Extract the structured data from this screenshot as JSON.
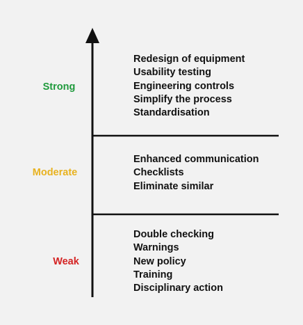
{
  "colors": {
    "background": "#f2f2f2",
    "line": "#111111",
    "strong": "#1f9a3c",
    "moderate": "#e8b21f",
    "weak": "#d42323"
  },
  "levels": [
    {
      "label": "Strong",
      "color": "#1f9a3c",
      "items": [
        "Redesign of equipment",
        "Usability testing",
        "Engineering controls",
        "Simplify the process",
        "Standardisation"
      ]
    },
    {
      "label": "Moderate",
      "color": "#e8b21f",
      "items": [
        "Enhanced communication",
        "Checklists",
        "Eliminate similar"
      ]
    },
    {
      "label": "Weak",
      "color": "#d42323",
      "items": [
        "Double checking",
        "Warnings",
        "New policy",
        "Training",
        "Disciplinary action"
      ]
    }
  ]
}
